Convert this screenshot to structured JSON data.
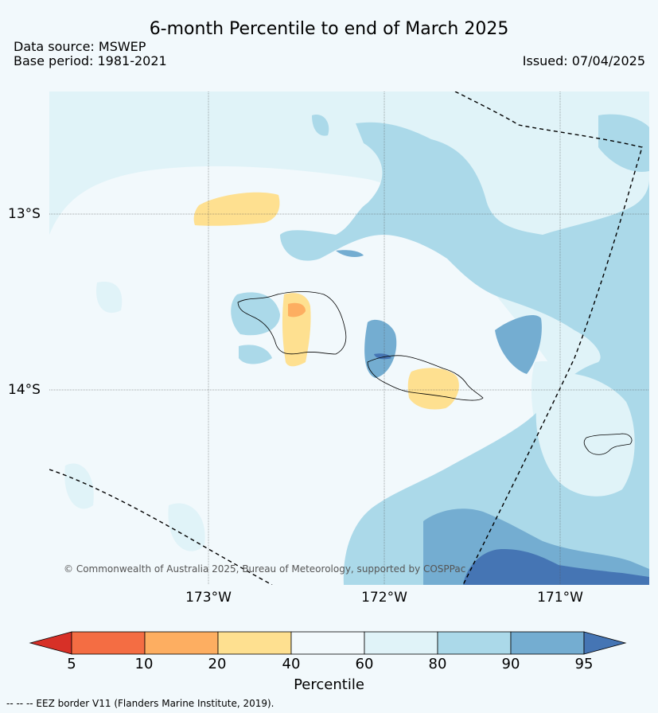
{
  "title": "6-month Percentile to end of March 2025",
  "data_source": "Data source: MSWEP",
  "base_period": "Base period: 1981-2021",
  "issued": "Issued: 07/04/2025",
  "latitude_labels": [
    "13°S",
    "14°S"
  ],
  "longitude_labels": [
    "173°W",
    "172°W",
    "171°W"
  ],
  "copyright": "© Commonwealth of Australia 2025, Bureau of Meteorology, supported by COSPPac",
  "colorbar": {
    "label": "Percentile",
    "ticks": [
      "5",
      "10",
      "20",
      "40",
      "60",
      "80",
      "90",
      "95"
    ],
    "colors": [
      "#d73027",
      "#f46d43",
      "#fdae61",
      "#fee090",
      "#f2f9fc",
      "#e0f3f8",
      "#abd9e9",
      "#74add1",
      "#4575b4"
    ]
  },
  "footnote": "--  --  -- EEZ border V11 (Flanders Marine Institute, 2019)."
}
